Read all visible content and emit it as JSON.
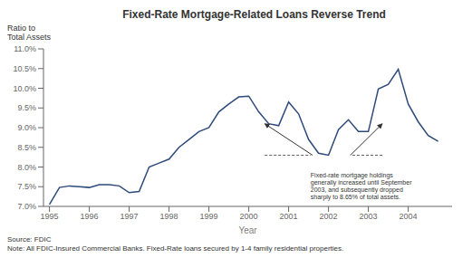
{
  "chart_data": {
    "type": "line",
    "title": "Fixed-Rate Mortgage-Related Loans Reverse Trend",
    "ylabel": "Ratio to\nTotal Assets",
    "xlabel": "Year",
    "source": "Source: FDIC\nNote: All FDIC-Insured Commercial Banks. Fixed-Rate loans secured by 1-4 family residential properties.",
    "color": "#2E4A7A",
    "grid": false,
    "x": [
      1995.0,
      1995.25,
      1995.5,
      1995.75,
      1996.0,
      1996.25,
      1996.5,
      1996.75,
      1997.0,
      1997.25,
      1997.5,
      1997.75,
      1998.0,
      1998.25,
      1998.5,
      1998.75,
      1999.0,
      1999.25,
      1999.5,
      1999.75,
      2000.0,
      2000.25,
      2000.5,
      2000.75,
      2001.0,
      2001.25,
      2001.5,
      2001.75,
      2002.0,
      2002.25,
      2002.5,
      2002.75,
      2003.0,
      2003.25,
      2003.5,
      2003.75,
      2004.0,
      2004.25,
      2004.5,
      2004.75
    ],
    "values": [
      0.0705,
      0.0748,
      0.0752,
      0.075,
      0.0748,
      0.0755,
      0.0755,
      0.0752,
      0.0735,
      0.0738,
      0.08,
      0.081,
      0.082,
      0.085,
      0.087,
      0.089,
      0.09,
      0.094,
      0.096,
      0.0978,
      0.098,
      0.094,
      0.091,
      0.0905,
      0.0965,
      0.0935,
      0.087,
      0.0835,
      0.083,
      0.0895,
      0.092,
      0.089,
      0.089,
      0.0998,
      0.101,
      0.1048,
      0.096,
      0.0915,
      0.088,
      0.0865
    ],
    "xlim": [
      1994.85,
      2005.1
    ],
    "xticks": [
      1995,
      1996,
      1997,
      1998,
      1999,
      2000,
      2001,
      2002,
      2003,
      2004
    ],
    "ylim": [
      0.07,
      0.11
    ],
    "yticks": [
      {
        "value": 0.07,
        "label": "7.0%"
      },
      {
        "value": 0.075,
        "label": "7.5%"
      },
      {
        "value": 0.08,
        "label": "8.0%"
      },
      {
        "value": 0.085,
        "label": "8.5%"
      },
      {
        "value": 0.09,
        "label": "9.0%"
      },
      {
        "value": 0.095,
        "label": "9.5%"
      },
      {
        "value": 0.1,
        "label": "10.0%"
      },
      {
        "value": 0.105,
        "label": "10.5%"
      },
      {
        "value": 0.11,
        "label": "11.0%"
      }
    ],
    "annotations": [
      {
        "text": "Fixed-rate mortgage holdings\ngenerally increased until September\n2003, and subsequently dropped\nsharply to 8.65% of total assets.",
        "x": 2001.55,
        "y": 0.079,
        "arrows": [
          {
            "from": [
              2001.6,
              0.083
            ],
            "to": [
              2000.4,
              0.091
            ]
          },
          {
            "from": [
              2002.55,
              0.083
            ],
            "to": [
              2003.35,
              0.091
            ]
          }
        ],
        "lines": [
          {
            "from": [
              2000.4,
              0.083
            ],
            "to": [
              2001.55,
              0.083
            ]
          },
          {
            "from": [
              2003.35,
              0.083
            ],
            "to": [
              2002.55,
              0.083
            ]
          }
        ]
      }
    ]
  }
}
